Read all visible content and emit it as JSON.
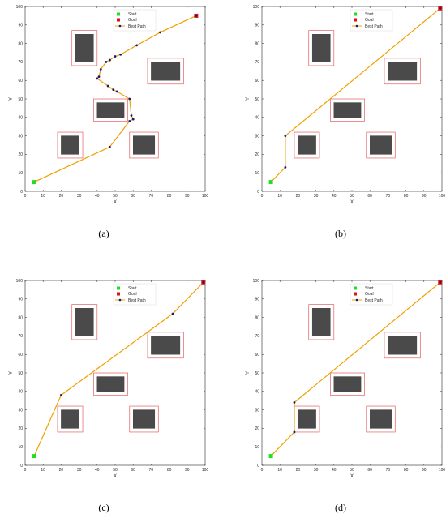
{
  "colors": {
    "path": "#F0A000",
    "path_marker": "#1A1A6E",
    "start": "#22DD22",
    "goal": "#DD1111",
    "obstacle_fill": "#4A4A4A",
    "obstacle_border": "#E06060",
    "axis": "#262626",
    "background": "#FFFFFF"
  },
  "chart_data": [
    {
      "type": "line",
      "panel": "a",
      "caption": "(a)",
      "xlabel": "X",
      "ylabel": "Y",
      "xlim": [
        0,
        100
      ],
      "ylim": [
        0,
        100
      ],
      "xticks": [
        "0",
        "10",
        "20",
        "30",
        "40",
        "50",
        "60",
        "70",
        "80",
        "90",
        "100"
      ],
      "yticks": [
        "0",
        "10",
        "20",
        "30",
        "40",
        "50",
        "60",
        "70",
        "80",
        "90",
        "100"
      ],
      "grid": false,
      "legend_position": "top-center",
      "legend": [
        "Start",
        "Goal",
        "Best Path"
      ],
      "start": [
        5,
        5
      ],
      "goal": [
        95,
        95
      ],
      "path": {
        "x": [
          5,
          47,
          58,
          60,
          59,
          58,
          51,
          49,
          46,
          40,
          41,
          42,
          45,
          47,
          47,
          50,
          53,
          62,
          75,
          95
        ],
        "y": [
          5,
          24,
          38,
          39,
          41,
          50,
          54,
          55,
          57,
          61,
          62,
          66,
          70,
          71,
          71,
          73,
          74,
          79,
          86,
          95
        ]
      },
      "obstacles": [
        {
          "x": [
            28,
            38
          ],
          "y": [
            70,
            85
          ],
          "zone_x": [
            26,
            40
          ],
          "zone_y": [
            68,
            87
          ]
        },
        {
          "x": [
            70,
            86
          ],
          "y": [
            60,
            70
          ],
          "zone_x": [
            68,
            88
          ],
          "zone_y": [
            58,
            72
          ]
        },
        {
          "x": [
            40,
            55
          ],
          "y": [
            40,
            48
          ],
          "zone_x": [
            38,
            57
          ],
          "zone_y": [
            38,
            50
          ]
        },
        {
          "x": [
            20,
            30
          ],
          "y": [
            20,
            30
          ],
          "zone_x": [
            18,
            32
          ],
          "zone_y": [
            18,
            32
          ]
        },
        {
          "x": [
            60,
            72
          ],
          "y": [
            20,
            30
          ],
          "zone_x": [
            58,
            74
          ],
          "zone_y": [
            18,
            32
          ]
        }
      ]
    },
    {
      "type": "line",
      "panel": "b",
      "caption": "(b)",
      "xlabel": "X",
      "ylabel": "Y",
      "xlim": [
        0,
        100
      ],
      "ylim": [
        0,
        100
      ],
      "xticks": [
        "0",
        "10",
        "20",
        "30",
        "40",
        "50",
        "60",
        "70",
        "80",
        "90",
        "100"
      ],
      "yticks": [
        "0",
        "10",
        "20",
        "30",
        "40",
        "50",
        "60",
        "70",
        "80",
        "90",
        "100"
      ],
      "grid": false,
      "legend_position": "top-center",
      "legend": [
        "Start",
        "Goal",
        "Best Path"
      ],
      "start": [
        5,
        5
      ],
      "goal": [
        99,
        99
      ],
      "path": {
        "x": [
          5,
          13,
          13,
          99
        ],
        "y": [
          5,
          13,
          30,
          99
        ]
      },
      "obstacles": [
        {
          "x": [
            28,
            38
          ],
          "y": [
            70,
            85
          ],
          "zone_x": [
            26,
            40
          ],
          "zone_y": [
            68,
            87
          ]
        },
        {
          "x": [
            70,
            86
          ],
          "y": [
            60,
            70
          ],
          "zone_x": [
            68,
            88
          ],
          "zone_y": [
            58,
            72
          ]
        },
        {
          "x": [
            40,
            55
          ],
          "y": [
            40,
            48
          ],
          "zone_x": [
            38,
            57
          ],
          "zone_y": [
            38,
            50
          ]
        },
        {
          "x": [
            20,
            30
          ],
          "y": [
            20,
            30
          ],
          "zone_x": [
            18,
            32
          ],
          "zone_y": [
            18,
            32
          ]
        },
        {
          "x": [
            60,
            72
          ],
          "y": [
            20,
            30
          ],
          "zone_x": [
            58,
            74
          ],
          "zone_y": [
            18,
            32
          ]
        }
      ]
    },
    {
      "type": "line",
      "panel": "c",
      "caption": "(c)",
      "xlabel": "X",
      "ylabel": "Y",
      "xlim": [
        0,
        100
      ],
      "ylim": [
        0,
        100
      ],
      "xticks": [
        "0",
        "10",
        "20",
        "30",
        "40",
        "50",
        "60",
        "70",
        "80",
        "90",
        "100"
      ],
      "yticks": [
        "0",
        "10",
        "20",
        "30",
        "40",
        "50",
        "60",
        "70",
        "80",
        "90",
        "100"
      ],
      "grid": false,
      "legend_position": "top-center",
      "legend": [
        "Start",
        "Goal",
        "Best Path"
      ],
      "start": [
        5,
        5
      ],
      "goal": [
        99,
        99
      ],
      "path": {
        "x": [
          5,
          20,
          82,
          99
        ],
        "y": [
          5,
          38,
          82,
          99
        ]
      },
      "obstacles": [
        {
          "x": [
            28,
            38
          ],
          "y": [
            70,
            85
          ],
          "zone_x": [
            26,
            40
          ],
          "zone_y": [
            68,
            87
          ]
        },
        {
          "x": [
            70,
            86
          ],
          "y": [
            60,
            70
          ],
          "zone_x": [
            68,
            88
          ],
          "zone_y": [
            58,
            72
          ]
        },
        {
          "x": [
            40,
            55
          ],
          "y": [
            40,
            48
          ],
          "zone_x": [
            38,
            57
          ],
          "zone_y": [
            38,
            50
          ]
        },
        {
          "x": [
            20,
            30
          ],
          "y": [
            20,
            30
          ],
          "zone_x": [
            18,
            32
          ],
          "zone_y": [
            18,
            32
          ]
        },
        {
          "x": [
            60,
            72
          ],
          "y": [
            20,
            30
          ],
          "zone_x": [
            58,
            74
          ],
          "zone_y": [
            18,
            32
          ]
        }
      ]
    },
    {
      "type": "line",
      "panel": "d",
      "caption": "(d)",
      "xlabel": "X",
      "ylabel": "Y",
      "xlim": [
        0,
        100
      ],
      "ylim": [
        0,
        100
      ],
      "xticks": [
        "0",
        "10",
        "20",
        "30",
        "40",
        "50",
        "60",
        "70",
        "80",
        "90",
        "100"
      ],
      "yticks": [
        "0",
        "10",
        "20",
        "30",
        "40",
        "50",
        "60",
        "70",
        "80",
        "90",
        "100"
      ],
      "grid": false,
      "legend_position": "top-center",
      "legend": [
        "Start",
        "Goal",
        "Best Path"
      ],
      "start": [
        5,
        5
      ],
      "goal": [
        99,
        99
      ],
      "path": {
        "x": [
          5,
          18,
          18,
          99
        ],
        "y": [
          5,
          18,
          34,
          99
        ]
      },
      "obstacles": [
        {
          "x": [
            28,
            38
          ],
          "y": [
            70,
            85
          ],
          "zone_x": [
            26,
            40
          ],
          "zone_y": [
            68,
            87
          ]
        },
        {
          "x": [
            70,
            86
          ],
          "y": [
            60,
            70
          ],
          "zone_x": [
            68,
            88
          ],
          "zone_y": [
            58,
            72
          ]
        },
        {
          "x": [
            40,
            55
          ],
          "y": [
            40,
            48
          ],
          "zone_x": [
            38,
            57
          ],
          "zone_y": [
            38,
            50
          ]
        },
        {
          "x": [
            20,
            30
          ],
          "y": [
            20,
            30
          ],
          "zone_x": [
            18,
            32
          ],
          "zone_y": [
            18,
            32
          ]
        },
        {
          "x": [
            60,
            72
          ],
          "y": [
            20,
            30
          ],
          "zone_x": [
            58,
            74
          ],
          "zone_y": [
            18,
            32
          ]
        }
      ]
    }
  ]
}
